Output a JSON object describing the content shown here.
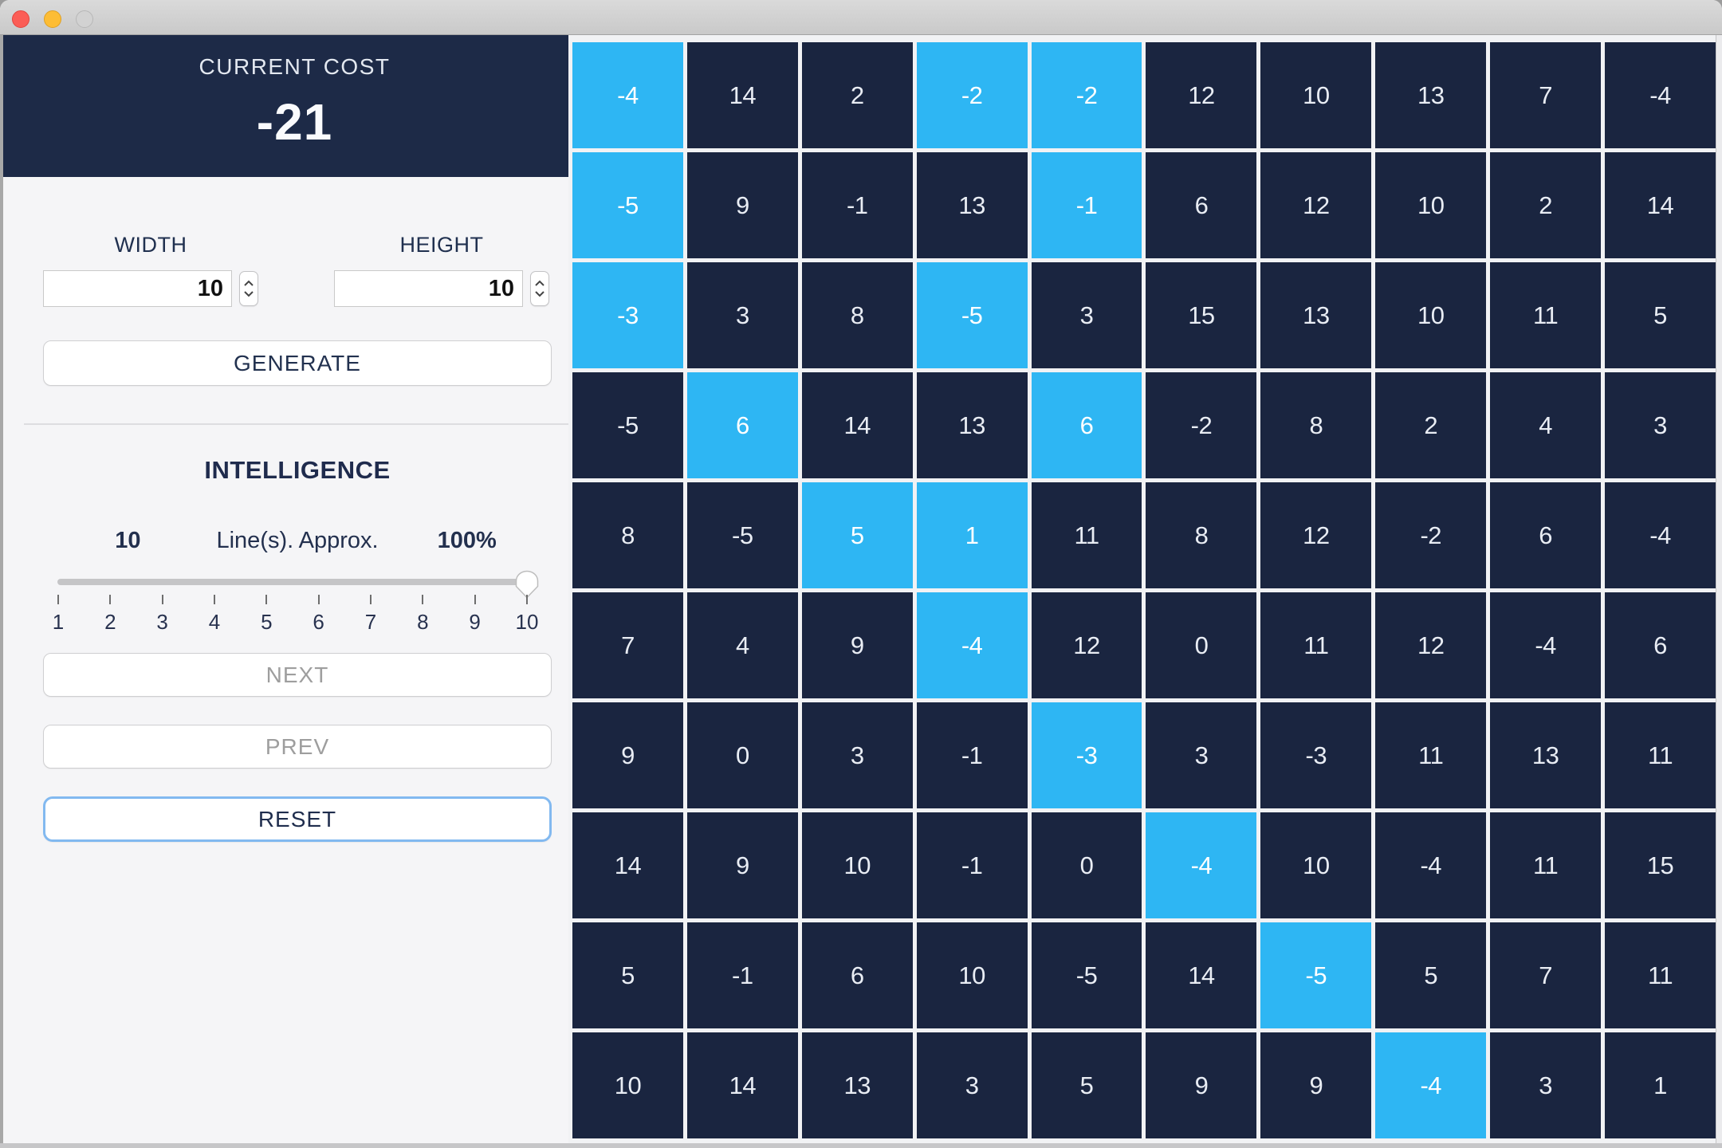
{
  "colors": {
    "cell_dark": "#1a2540",
    "cell_highlight": "#2eb6f3",
    "header_panel": "#1d2a47",
    "sidebar_bg": "#f5f5f7",
    "reset_focus_ring": "#82b9f0",
    "disabled_text": "#9e9e9e",
    "navy_text": "#20304f"
  },
  "sidebar": {
    "cost": {
      "label": "CURRENT COST",
      "value": "-21"
    },
    "fields": {
      "width_label": "WIDTH",
      "width_value": "10",
      "height_label": "HEIGHT",
      "height_value": "10"
    },
    "generate_label": "GENERATE",
    "intelligence": {
      "title": "INTELLIGENCE",
      "lines_value": "10",
      "caption": "Line(s). Approx.",
      "percent": "100%",
      "slider_min": 1,
      "slider_max": 10,
      "slider_value": 10,
      "ticks": [
        "1",
        "2",
        "3",
        "4",
        "5",
        "6",
        "7",
        "8",
        "9",
        "10"
      ]
    },
    "buttons": {
      "next": {
        "label": "NEXT",
        "enabled": false
      },
      "prev": {
        "label": "PREV",
        "enabled": false
      },
      "reset": {
        "label": "RESET",
        "enabled": true
      }
    }
  },
  "grid": {
    "rows": 10,
    "cols": 10,
    "values": [
      [
        -4,
        14,
        2,
        -2,
        -2,
        12,
        10,
        13,
        7,
        -4
      ],
      [
        -5,
        9,
        -1,
        13,
        -1,
        6,
        12,
        10,
        2,
        14
      ],
      [
        -3,
        3,
        8,
        -5,
        3,
        15,
        13,
        10,
        11,
        5
      ],
      [
        -5,
        6,
        14,
        13,
        6,
        -2,
        8,
        2,
        4,
        3
      ],
      [
        8,
        -5,
        5,
        1,
        11,
        8,
        12,
        -2,
        6,
        -4
      ],
      [
        7,
        4,
        9,
        -4,
        12,
        0,
        11,
        12,
        -4,
        6
      ],
      [
        9,
        0,
        3,
        -1,
        -3,
        3,
        -3,
        11,
        13,
        11
      ],
      [
        14,
        9,
        10,
        -1,
        0,
        -4,
        10,
        -4,
        11,
        15
      ],
      [
        5,
        -1,
        6,
        10,
        -5,
        14,
        -5,
        5,
        7,
        11
      ],
      [
        10,
        14,
        13,
        3,
        5,
        9,
        9,
        -4,
        3,
        1
      ]
    ],
    "highlighted": [
      [
        0,
        0
      ],
      [
        0,
        3
      ],
      [
        0,
        4
      ],
      [
        1,
        0
      ],
      [
        1,
        4
      ],
      [
        2,
        0
      ],
      [
        2,
        3
      ],
      [
        3,
        1
      ],
      [
        3,
        4
      ],
      [
        4,
        2
      ],
      [
        4,
        3
      ],
      [
        5,
        3
      ],
      [
        6,
        4
      ],
      [
        7,
        5
      ],
      [
        8,
        6
      ],
      [
        9,
        7
      ]
    ]
  }
}
